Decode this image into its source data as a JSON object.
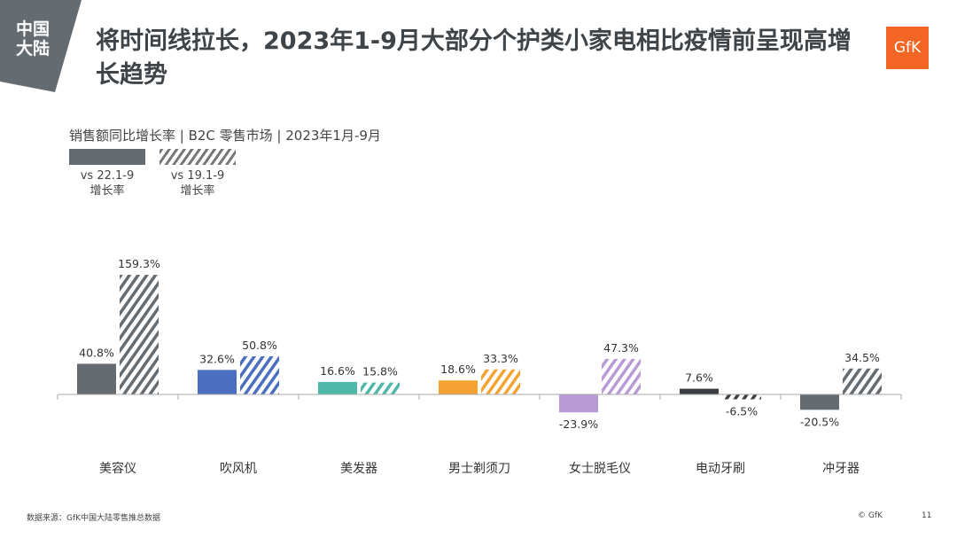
{
  "region_tag": "中国\n大陆",
  "title": "将时间线拉长，2023年1-9月大部分个护类小家电相比疫情前呈现高增长趋势",
  "logo": "GfK",
  "footer": {
    "source": "数据来源：GfK中国大陆零售推总数据",
    "copyright": "© GfK",
    "page": "11"
  },
  "colors": {
    "brand": "#f26522",
    "corner": "#646b71"
  },
  "chart_data": {
    "type": "bar",
    "title": "销售额同比增长率 | B2C 零售市场 | 2023年1月-9月",
    "categories": [
      "美容仪",
      "吹风机",
      "美发器",
      "男士剃须刀",
      "女士脱毛仪",
      "电动牙刷",
      "冲牙器"
    ],
    "category_colors": [
      "#646b71",
      "#4a6fc1",
      "#4db8aa",
      "#f5a233",
      "#b99ad6",
      "#3b3f44",
      "#646b71"
    ],
    "series": [
      {
        "name": "vs 22.1-9 增长率",
        "style": "solid",
        "values": [
          40.8,
          32.6,
          16.6,
          18.6,
          -23.9,
          7.6,
          -20.5
        ]
      },
      {
        "name": "vs 19.1-9 增长率",
        "style": "hatched",
        "values": [
          159.3,
          50.8,
          15.8,
          33.3,
          47.3,
          -6.5,
          34.5
        ]
      }
    ],
    "unit": "%",
    "legend_placement": "top-left",
    "grid": false
  }
}
